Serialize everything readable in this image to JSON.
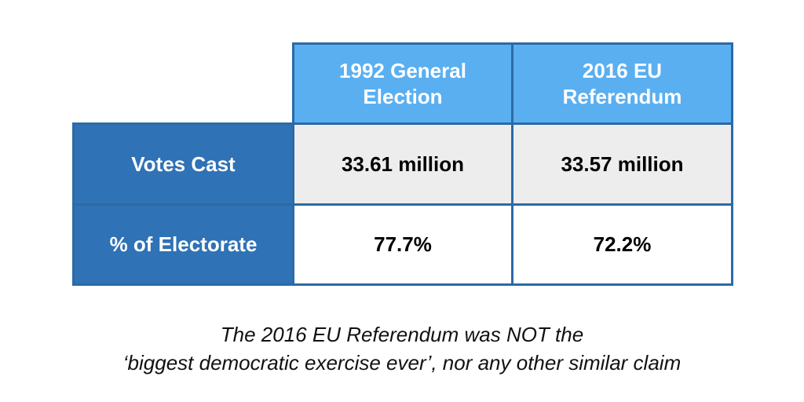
{
  "chart_data": {
    "type": "table",
    "columns": [
      "1992 General Election",
      "2016 EU Referendum"
    ],
    "rows": [
      {
        "label": "Votes Cast",
        "values": [
          "33.61 million",
          "33.57 million"
        ]
      },
      {
        "label": "% of Electorate",
        "values": [
          "77.7%",
          "72.2%"
        ]
      }
    ]
  },
  "header": {
    "col1_line1": "1992 General",
    "col1_line2": "Election",
    "col2_line1": "2016 EU",
    "col2_line2": "Referendum"
  },
  "caption": {
    "line1": "The 2016 EU Referendum was NOT the",
    "line2": "‘biggest democratic exercise ever’, nor any other similar claim"
  },
  "colors": {
    "header_fill": "#5aaff0",
    "row_header_fill": "#2f72b5",
    "border": "#2c6aa6",
    "shaded_cell": "#ededed"
  }
}
